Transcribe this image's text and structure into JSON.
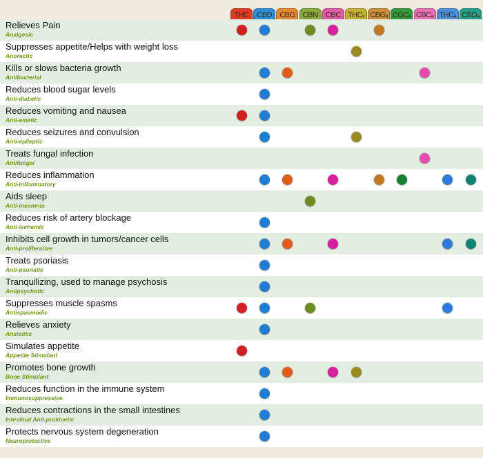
{
  "chart_data": {
    "type": "table",
    "compounds": [
      {
        "name": "THC",
        "header_color": "#e23b24",
        "dot_color": "#d21f22"
      },
      {
        "name": "CBD",
        "header_color": "#2f8fd6",
        "dot_color": "#1f7ed1"
      },
      {
        "name": "CBG",
        "header_color": "#e8862e",
        "dot_color": "#e15b1b"
      },
      {
        "name": "CBN",
        "header_color": "#86a83b",
        "dot_color": "#6f8c22"
      },
      {
        "name": "CBC",
        "header_color": "#e259a8",
        "dot_color": "#d6219e"
      },
      {
        "name": "THCᵥ",
        "header_color": "#c1b133",
        "dot_color": "#9a8b22"
      },
      {
        "name": "CBGₐ",
        "header_color": "#c98f3a",
        "dot_color": "#c07a23"
      },
      {
        "name": "CGCₐ",
        "header_color": "#2f9a3e",
        "dot_color": "#178331"
      },
      {
        "name": "CBCₐ",
        "header_color": "#ea6fb8",
        "dot_color": "#e54bb0"
      },
      {
        "name": "THCₐ",
        "header_color": "#4a8fdc",
        "dot_color": "#2f7ad8"
      },
      {
        "name": "CBDₐ",
        "header_color": "#239e8a",
        "dot_color": "#0f8273"
      }
    ],
    "rows": [
      {
        "label": "Relieves Pain",
        "sub": "Analgesic",
        "compounds": [
          "THC",
          "CBD",
          "CBN",
          "CBC",
          "CBGₐ"
        ]
      },
      {
        "label": "Suppresses appetite/Helps with weight loss",
        "sub": "Anorectic",
        "compounds": [
          "THCᵥ"
        ]
      },
      {
        "label": "Kills or slows bacteria growth",
        "sub": "Antibacterial",
        "compounds": [
          "CBD",
          "CBG",
          "CBCₐ"
        ]
      },
      {
        "label": "Reduces blood sugar levels",
        "sub": "Anti-diabetic",
        "compounds": [
          "CBD"
        ]
      },
      {
        "label": "Reduces vomiting and nausea",
        "sub": "Anti-emetic",
        "compounds": [
          "THC",
          "CBD"
        ]
      },
      {
        "label": "Reduces seizures and convulsion",
        "sub": "Anti-epileptic",
        "compounds": [
          "CBD",
          "THCᵥ"
        ]
      },
      {
        "label": "Treats fungal infection",
        "sub": "Antifungal",
        "compounds": [
          "CBCₐ"
        ]
      },
      {
        "label": "Reduces inflammation",
        "sub": "Anti-inflammatory",
        "compounds": [
          "CBD",
          "CBG",
          "CBC",
          "CBGₐ",
          "CGCₐ",
          "THCₐ",
          "CBDₐ"
        ]
      },
      {
        "label": "Aids sleep",
        "sub": "Anti-insomnia",
        "compounds": [
          "CBN"
        ]
      },
      {
        "label": "Reduces risk of artery blockage",
        "sub": "Anti-ischemic",
        "compounds": [
          "CBD"
        ]
      },
      {
        "label": "Inhibits cell growth in tumors/cancer cells",
        "sub": "Anti-proliferative",
        "compounds": [
          "CBD",
          "CBG",
          "CBC",
          "THCₐ",
          "CBDₐ"
        ]
      },
      {
        "label": "Treats psoriasis",
        "sub": "Anti-psoriatic",
        "compounds": [
          "CBD"
        ]
      },
      {
        "label": "Tranquilizing, used to manage psychosis",
        "sub": "Antipsychotic",
        "compounds": [
          "CBD"
        ]
      },
      {
        "label": "Suppresses muscle spasms",
        "sub": "Antispasmodic",
        "compounds": [
          "THC",
          "CBD",
          "CBN",
          "THCₐ"
        ]
      },
      {
        "label": "Relieves anxiety",
        "sub": "Anxiolitic",
        "compounds": [
          "CBD"
        ]
      },
      {
        "label": "Simulates appetite",
        "sub": "Appetite Stimulant",
        "compounds": [
          "THC"
        ]
      },
      {
        "label": "Promotes bone growth",
        "sub": "Bone Stimulant",
        "compounds": [
          "CBD",
          "CBG",
          "CBC",
          "THCᵥ"
        ]
      },
      {
        "label": "Reduces function in the immune system",
        "sub": "Immunosuppressive",
        "compounds": [
          "CBD"
        ]
      },
      {
        "label": "Reduces contractions in the small intestines",
        "sub": "Intestinal Anti-prokinetic",
        "compounds": [
          "CBD"
        ]
      },
      {
        "label": "Protects nervous system degeneration",
        "sub": "Neuroprotective",
        "compounds": [
          "CBD"
        ]
      }
    ]
  }
}
